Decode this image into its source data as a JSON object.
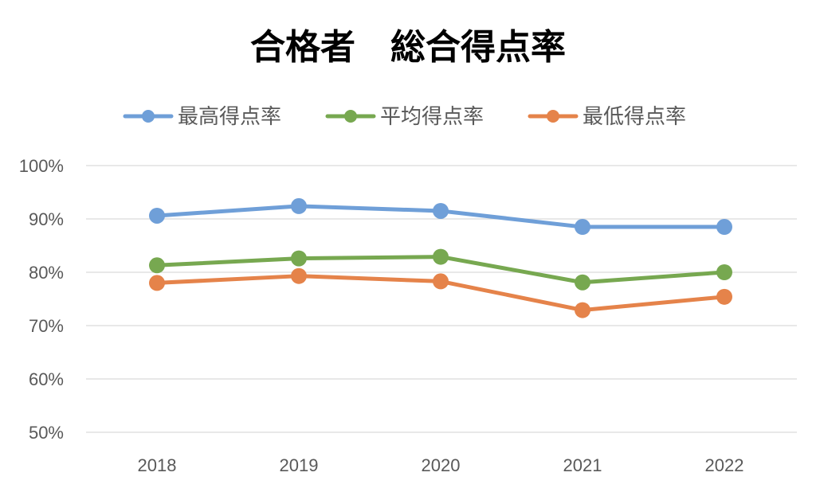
{
  "chart_data": {
    "type": "line",
    "title": "合格者　総合得点率",
    "xlabel": "",
    "ylabel": "",
    "categories": [
      "2018",
      "2019",
      "2020",
      "2021",
      "2022"
    ],
    "y_ticks": [
      "50%",
      "60%",
      "70%",
      "80%",
      "90%",
      "100%"
    ],
    "ylim": [
      50,
      100
    ],
    "grid": true,
    "legend_position": "top",
    "series": [
      {
        "name": "最高得点率",
        "color": "#6f9fd8",
        "values": [
          90.6,
          92.4,
          91.5,
          88.5,
          88.5
        ]
      },
      {
        "name": "平均得点率",
        "color": "#77a850",
        "values": [
          81.3,
          82.6,
          82.9,
          78.1,
          80.0
        ]
      },
      {
        "name": "最低得点率",
        "color": "#e5834a",
        "values": [
          78.0,
          79.3,
          78.3,
          72.9,
          75.4
        ]
      }
    ]
  }
}
